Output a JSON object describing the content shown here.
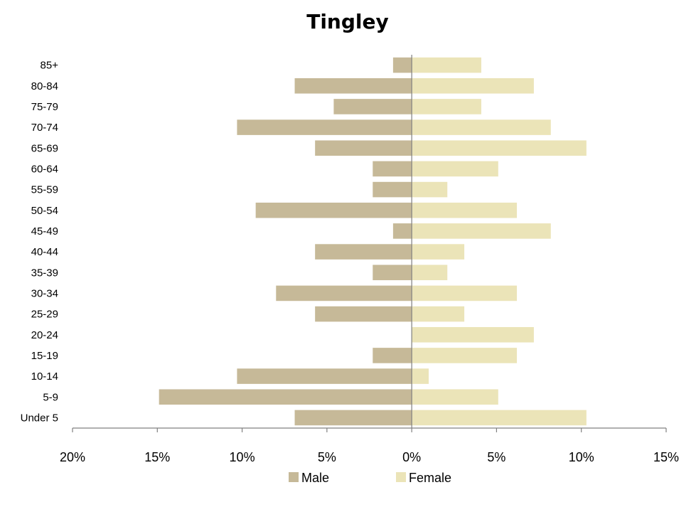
{
  "chart_data": {
    "type": "bar",
    "orientation": "horizontal",
    "title": "Tingley",
    "categories": [
      "85+",
      "80-84",
      "75-79",
      "70-74",
      "65-69",
      "60-64",
      "55-59",
      "50-54",
      "45-49",
      "40-44",
      "35-39",
      "30-34",
      "25-29",
      "20-24",
      "15-19",
      "10-14",
      "5-9",
      "Under 5"
    ],
    "series": [
      {
        "name": "Male",
        "color": "#c6b998",
        "values": [
          -1.1,
          -6.9,
          -4.6,
          -10.3,
          -5.7,
          -2.3,
          -2.3,
          -9.2,
          -1.1,
          -5.7,
          -2.3,
          -8.0,
          -5.7,
          0.0,
          -2.3,
          -10.3,
          -14.9,
          -6.9
        ]
      },
      {
        "name": "Female",
        "color": "#ebe4b8",
        "values": [
          4.1,
          7.2,
          4.1,
          8.2,
          10.3,
          5.1,
          2.1,
          6.2,
          8.2,
          3.1,
          2.1,
          6.2,
          3.1,
          7.2,
          6.2,
          1.0,
          5.1,
          10.3
        ]
      }
    ],
    "xlim": [
      -20,
      15
    ],
    "xticks": [
      -20,
      -15,
      -10,
      -5,
      0,
      5,
      10,
      15
    ],
    "xtick_labels": [
      "20%",
      "15%",
      "10%",
      "5%",
      "0%",
      "5%",
      "10%",
      "15%"
    ],
    "legend_position": "bottom",
    "grid": false
  }
}
